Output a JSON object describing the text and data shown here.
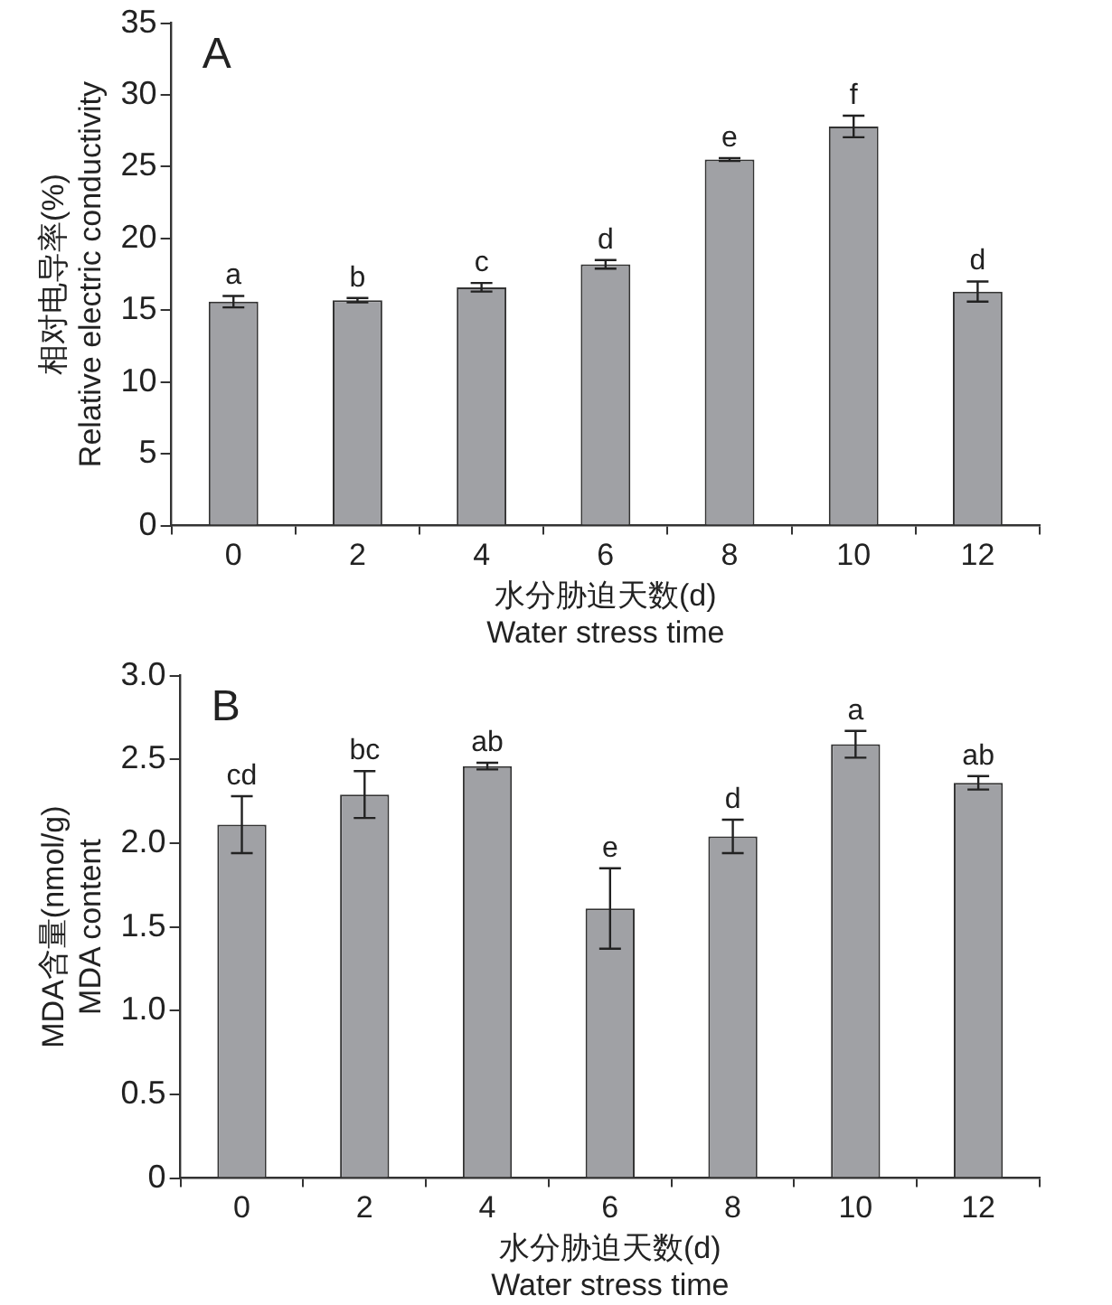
{
  "chart_data": [
    {
      "type": "bar",
      "xlabel": "水分胁迫天数(d)\nWater stress time",
      "ylabel": "相对电导率(%)\nRelative electric conductivity",
      "categories": [
        "0",
        "2",
        "4",
        "6",
        "8",
        "10",
        "12"
      ],
      "color": "#a0a1a5",
      "values": [
        15.6,
        15.7,
        16.6,
        18.2,
        25.5,
        27.8,
        16.3
      ],
      "errors": [
        0.4,
        0.15,
        0.3,
        0.3,
        0.1,
        0.75,
        0.7
      ],
      "ylim": [
        0,
        35
      ],
      "yticks": [
        0,
        5,
        10,
        15,
        20,
        25,
        30,
        35
      ],
      "grid": false,
      "legend": false,
      "annotations": [
        "A",
        {
          "text": "a",
          "x": "0",
          "y": 16.0
        },
        {
          "text": "b",
          "x": "2",
          "y": 15.85
        },
        {
          "text": "c",
          "x": "4",
          "y": 16.9
        },
        {
          "text": "d",
          "x": "6",
          "y": 18.5
        },
        {
          "text": "e",
          "x": "8",
          "y": 25.6
        },
        {
          "text": "f",
          "x": "10",
          "y": 28.55
        },
        {
          "text": "d",
          "x": "12",
          "y": 17.0
        }
      ]
    },
    {
      "type": "bar",
      "xlabel": "水分胁迫天数(d)\nWater stress time",
      "ylabel": "MDA含量(nmol/g)\nMDA content",
      "categories": [
        "0",
        "2",
        "4",
        "6",
        "8",
        "10",
        "12"
      ],
      "color": "#a0a1a5",
      "values": [
        2.11,
        2.29,
        2.46,
        1.61,
        2.04,
        2.59,
        2.36
      ],
      "errors": [
        0.17,
        0.14,
        0.02,
        0.24,
        0.1,
        0.08,
        0.04
      ],
      "ylim": [
        0,
        3.0
      ],
      "yticks": [
        0,
        {
          "value": 0.5,
          "label": "0.5"
        },
        {
          "value": 1,
          "label": "1.0"
        },
        {
          "value": 1.5,
          "label": "1.5"
        },
        {
          "value": 2,
          "label": "2.0"
        },
        {
          "value": 2.5,
          "label": "2.5"
        },
        {
          "value": 3,
          "label": "3.0"
        }
      ],
      "grid": false,
      "legend": false,
      "annotations": [
        "B",
        {
          "text": "cd",
          "x": "0",
          "y": 2.28
        },
        {
          "text": "bc",
          "x": "2",
          "y": 2.43
        },
        {
          "text": "ab",
          "x": "4",
          "y": 2.48
        },
        {
          "text": "e",
          "x": "6",
          "y": 1.85
        },
        {
          "text": "d",
          "x": "8",
          "y": 2.14
        },
        {
          "text": "a",
          "x": "10",
          "y": 2.67
        },
        {
          "text": "ab",
          "x": "12",
          "y": 2.4
        }
      ]
    }
  ]
}
